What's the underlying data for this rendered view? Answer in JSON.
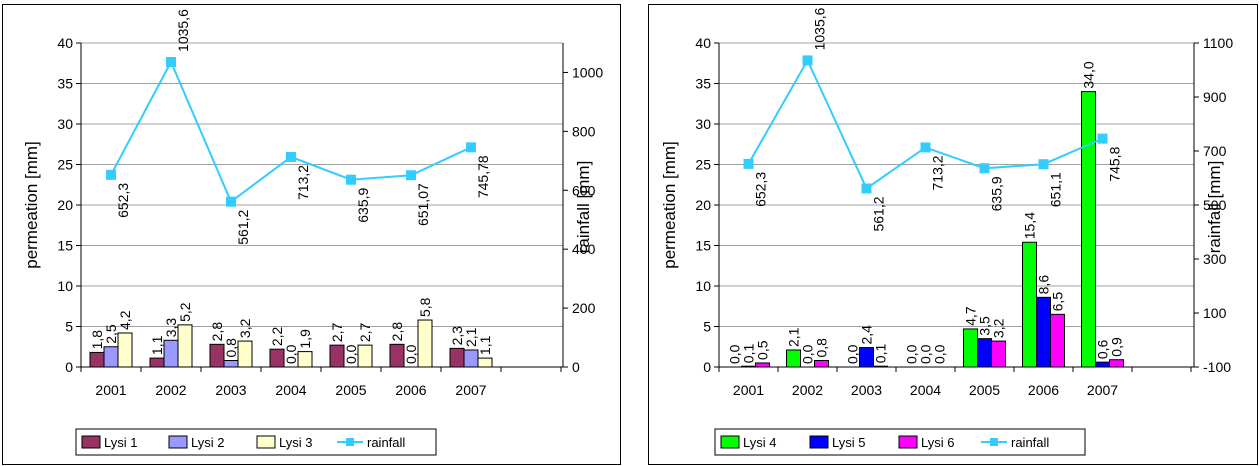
{
  "chart_data": [
    {
      "type": "bar",
      "title": "",
      "categories": [
        "2001",
        "2002",
        "2003",
        "2004",
        "2005",
        "2006",
        "2007"
      ],
      "ylabel": "permeation [mm]",
      "ylim": [
        0,
        40
      ],
      "yticks": [
        0,
        5,
        10,
        15,
        20,
        25,
        30,
        35,
        40
      ],
      "y2label": "rainfall [mm]",
      "y2lim": [
        0,
        1100
      ],
      "y2ticks": [
        0,
        200,
        400,
        600,
        800,
        1000
      ],
      "grid": true,
      "legend_position": "bottom",
      "series": [
        {
          "name": "Lysi 1",
          "type": "bar",
          "color": "#993366",
          "values": [
            1.8,
            1.1,
            2.8,
            2.2,
            2.7,
            2.8,
            2.3
          ],
          "labels": [
            "1,8",
            "1,1",
            "2,8",
            "2,2",
            "2,7",
            "2,8",
            "2,3"
          ]
        },
        {
          "name": "Lysi 2",
          "type": "bar",
          "color": "#9999FF",
          "values": [
            2.5,
            3.3,
            0.8,
            0.0,
            0.0,
            0.0,
            2.1
          ],
          "labels": [
            "2,5",
            "3,3",
            "0,8",
            "0,0",
            "0,0",
            "0,0",
            "2,1"
          ]
        },
        {
          "name": "Lysi 3",
          "type": "bar",
          "color": "#FFFFCC",
          "values": [
            4.2,
            5.2,
            3.2,
            1.9,
            2.7,
            5.8,
            1.1
          ],
          "labels": [
            "4,2",
            "5,2",
            "3,2",
            "1,9",
            "2,7",
            "5,8",
            "1,1"
          ]
        },
        {
          "name": "rainfall",
          "type": "line",
          "axis": "right",
          "color": "#33CCFF",
          "values": [
            652.3,
            1035.6,
            561.2,
            713.2,
            635.9,
            651.07,
            745.78
          ],
          "labels": [
            "652,3",
            "1035,6",
            "561,2",
            "713,2",
            "635,9",
            "651,07",
            "745,78"
          ]
        }
      ]
    },
    {
      "type": "bar",
      "title": "",
      "categories": [
        "2001",
        "2002",
        "2003",
        "2004",
        "2005",
        "2006",
        "2007"
      ],
      "ylabel": "permeation [mm]",
      "ylim": [
        0,
        40
      ],
      "yticks": [
        0,
        5,
        10,
        15,
        20,
        25,
        30,
        35,
        40
      ],
      "y2label": "rainfall [mm]",
      "y2lim": [
        -100,
        1100
      ],
      "y2ticks": [
        -100,
        100,
        300,
        500,
        700,
        900,
        1100
      ],
      "grid": true,
      "legend_position": "bottom",
      "series": [
        {
          "name": "Lysi 4",
          "type": "bar",
          "color": "#00FF00",
          "values": [
            0.0,
            2.1,
            0.0,
            0.0,
            4.7,
            15.4,
            34.0
          ],
          "labels": [
            "0,0",
            "2,1",
            "0,0",
            "0,0",
            "4,7",
            "15,4",
            "34,0"
          ]
        },
        {
          "name": "Lysi 5",
          "type": "bar",
          "color": "#0000FF",
          "values": [
            0.1,
            0.0,
            2.4,
            0.0,
            3.5,
            8.6,
            0.6
          ],
          "labels": [
            "0,1",
            "0,0",
            "2,4",
            "0,0",
            "3,5",
            "8,6",
            "0,6"
          ]
        },
        {
          "name": "Lysi 6",
          "type": "bar",
          "color": "#FF00FF",
          "values": [
            0.5,
            0.8,
            0.1,
            0.0,
            3.2,
            6.5,
            0.9
          ],
          "labels": [
            "0,5",
            "0,8",
            "0,1",
            "0,0",
            "3,2",
            "6,5",
            "0,9"
          ]
        },
        {
          "name": "rainfall",
          "type": "line",
          "axis": "right",
          "color": "#33CCFF",
          "values": [
            652.3,
            1035.6,
            561.2,
            713.2,
            635.9,
            651.1,
            745.8
          ],
          "labels": [
            "652,3",
            "1035,6",
            "561,2",
            "713,2",
            "635,9",
            "651,1",
            "745,8"
          ]
        }
      ]
    }
  ]
}
